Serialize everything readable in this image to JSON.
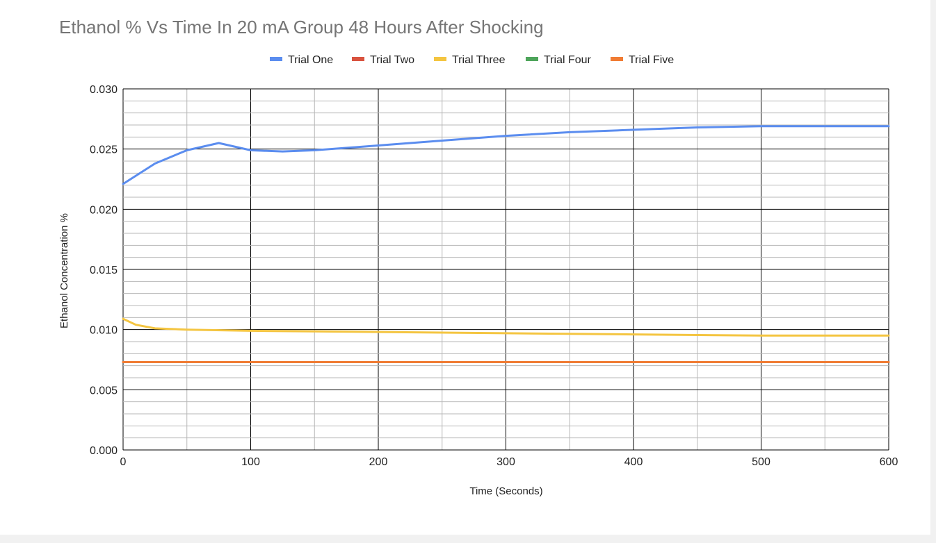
{
  "chart_data": {
    "type": "line",
    "title": "Ethanol % Vs Time In 20 mA Group 48 Hours After Shocking",
    "xlabel": "Time (Seconds)",
    "ylabel": "Ethanol Concentration %",
    "xlim": [
      0,
      600
    ],
    "ylim": [
      0,
      0.03
    ],
    "x_ticks": [
      "0",
      "100",
      "200",
      "300",
      "400",
      "500",
      "600"
    ],
    "y_ticks": [
      "0.000",
      "0.005",
      "0.010",
      "0.015",
      "0.020",
      "0.025",
      "0.030"
    ],
    "grid": true,
    "legend_position": "top",
    "series": [
      {
        "name": "Trial One",
        "color": "#5b8def",
        "x": [
          0,
          25,
          50,
          75,
          100,
          125,
          150,
          200,
          250,
          300,
          350,
          400,
          450,
          500,
          550,
          600
        ],
        "y": [
          0.0221,
          0.0238,
          0.0249,
          0.0255,
          0.0249,
          0.0248,
          0.0249,
          0.0253,
          0.0257,
          0.0261,
          0.0264,
          0.0266,
          0.0268,
          0.0269,
          0.0269,
          0.0269
        ]
      },
      {
        "name": "Trial Two",
        "color": "#d9533f",
        "x": [
          0,
          600
        ],
        "y": [
          0.0073,
          0.0073
        ]
      },
      {
        "name": "Trial Three",
        "color": "#f4c541",
        "x": [
          0,
          10,
          25,
          50,
          100,
          200,
          300,
          400,
          500,
          600
        ],
        "y": [
          0.0109,
          0.0104,
          0.0101,
          0.01,
          0.0099,
          0.0098,
          0.0097,
          0.0096,
          0.0095,
          0.0095
        ]
      },
      {
        "name": "Trial Four",
        "color": "#4ea55b",
        "x": [
          0,
          600
        ],
        "y": [
          0.0073,
          0.0073
        ]
      },
      {
        "name": "Trial Five",
        "color": "#f07c34",
        "x": [
          0,
          600
        ],
        "y": [
          0.0073,
          0.0073
        ]
      }
    ]
  }
}
